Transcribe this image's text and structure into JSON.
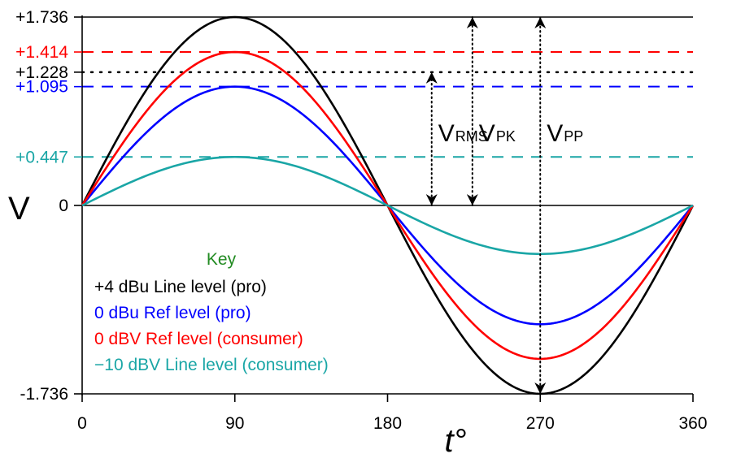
{
  "chart_data": {
    "type": "line",
    "xlabel": "t°",
    "ylabel": "V",
    "xlim": [
      0,
      360
    ],
    "ylim": [
      -1.736,
      1.736
    ],
    "x_ticks": [
      {
        "value": 0,
        "label": "0"
      },
      {
        "value": 90,
        "label": "90"
      },
      {
        "value": 180,
        "label": "180"
      },
      {
        "value": 270,
        "label": "270"
      },
      {
        "value": 360,
        "label": "360"
      }
    ],
    "y_ticks": [
      {
        "value": 1.736,
        "label": "+1.736",
        "color": "#000000"
      },
      {
        "value": 1.414,
        "label": "+1.414",
        "color": "#ff0000"
      },
      {
        "value": 1.228,
        "label": "+1.228",
        "color": "#000000"
      },
      {
        "value": 1.095,
        "label": "+1.095",
        "color": "#0000ff"
      },
      {
        "value": 0.447,
        "label": "+0.447",
        "color": "#1aa6a6"
      },
      {
        "value": 0,
        "label": "0",
        "color": "#000000"
      },
      {
        "value": -1.736,
        "label": "-1.736",
        "color": "#000000"
      }
    ],
    "series": [
      {
        "name": "+4 dBu Line level (pro)",
        "amplitude": 1.736,
        "color": "#000000"
      },
      {
        "name": "0 dBu Ref level (pro)",
        "amplitude": 1.095,
        "color": "#0000ff"
      },
      {
        "name": "0 dBV Ref level (consumer)",
        "amplitude": 1.414,
        "color": "#ff0000"
      },
      {
        "name": "−10 dBV Line level (consumer)",
        "amplitude": 0.447,
        "color": "#1aa6a6"
      }
    ],
    "reference_lines": [
      {
        "value": 1.736,
        "style": "solid",
        "color": "#000000"
      },
      {
        "value": 1.414,
        "style": "dashed",
        "color": "#ff0000"
      },
      {
        "value": 1.228,
        "style": "dotted",
        "color": "#000000"
      },
      {
        "value": 1.095,
        "style": "dashed",
        "color": "#0000ff"
      },
      {
        "value": 0.447,
        "style": "dashed",
        "color": "#1aa6a6"
      },
      {
        "value": 0,
        "style": "solid",
        "color": "#000000"
      }
    ],
    "measurements": [
      {
        "main": "V",
        "sub": "RMS",
        "x": 206,
        "from": 0,
        "to": 1.228
      },
      {
        "main": "V",
        "sub": "PK",
        "x": 230,
        "from": 0,
        "to": 1.736
      },
      {
        "main": "V",
        "sub": "PP",
        "x": 270,
        "from": -1.736,
        "to": 1.736
      }
    ],
    "legend": {
      "title": "Key",
      "title_color": "#228b22",
      "placement": "bottom-left"
    }
  }
}
